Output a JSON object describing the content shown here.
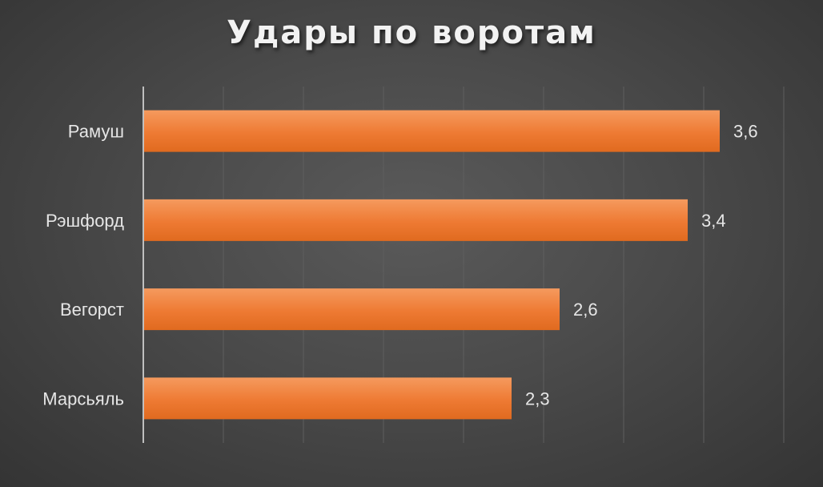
{
  "chart_data": {
    "type": "bar",
    "orientation": "horizontal",
    "title": "Удары по воротам",
    "categories": [
      "Рамуш",
      "Рэшфорд",
      "Вегорст",
      "Марсьяль"
    ],
    "values": [
      3.6,
      3.4,
      2.6,
      2.3
    ],
    "value_labels": [
      "3,6",
      "3,4",
      "2,6",
      "2,3"
    ],
    "xlim": [
      0,
      4
    ],
    "grid": true,
    "legend": "none",
    "bar_color": "#ed7d31"
  }
}
